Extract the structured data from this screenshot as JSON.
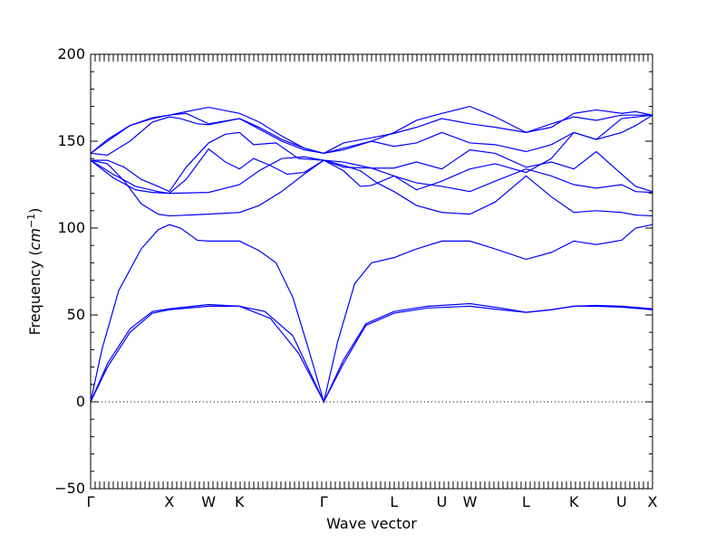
{
  "chart_data": {
    "type": "line",
    "xlabel": "Wave vector",
    "ylabel_prefix": "Frequency (",
    "ylabel_unit": "cm",
    "ylabel_exp": "−1",
    "ylabel_suffix": ")",
    "ylim": [
      -50,
      200
    ],
    "yticks": [
      -50,
      0,
      50,
      100,
      150,
      200
    ],
    "ytick_labels": [
      "−50",
      "0",
      "50",
      "100",
      "150",
      "200"
    ],
    "xlim": [
      0,
      1
    ],
    "high_symmetry_points": [
      {
        "label": "Γ",
        "x": 0.0
      },
      {
        "label": "X",
        "x": 0.14
      },
      {
        "label": "W",
        "x": 0.21
      },
      {
        "label": "K",
        "x": 0.265
      },
      {
        "label": "Γ",
        "x": 0.415
      },
      {
        "label": "L",
        "x": 0.54
      },
      {
        "label": "U",
        "x": 0.625
      },
      {
        "label": "W",
        "x": 0.675
      },
      {
        "label": "L",
        "x": 0.775
      },
      {
        "label": "K",
        "x": 0.86
      },
      {
        "label": "U",
        "x": 0.945
      },
      {
        "label": "X",
        "x": 1.0
      }
    ],
    "series": [
      {
        "values": [
          [
            0,
            0
          ],
          [
            0.03,
            20
          ],
          [
            0.07,
            40
          ],
          [
            0.11,
            51
          ],
          [
            0.14,
            53
          ],
          [
            0.21,
            55
          ],
          [
            0.265,
            55
          ],
          [
            0.32,
            48
          ],
          [
            0.37,
            28
          ],
          [
            0.415,
            0
          ],
          [
            0.45,
            22
          ],
          [
            0.49,
            44
          ],
          [
            0.54,
            51
          ],
          [
            0.6,
            54
          ],
          [
            0.675,
            55
          ],
          [
            0.73,
            53
          ],
          [
            0.775,
            51.5
          ],
          [
            0.82,
            53
          ],
          [
            0.86,
            55
          ],
          [
            0.9,
            55
          ],
          [
            0.945,
            54.5
          ],
          [
            1.0,
            53
          ]
        ]
      },
      {
        "values": [
          [
            0,
            0
          ],
          [
            0.03,
            22
          ],
          [
            0.07,
            42
          ],
          [
            0.11,
            52
          ],
          [
            0.14,
            53.5
          ],
          [
            0.21,
            56
          ],
          [
            0.265,
            55
          ],
          [
            0.31,
            52
          ],
          [
            0.36,
            38
          ],
          [
            0.415,
            0
          ],
          [
            0.45,
            24
          ],
          [
            0.49,
            45
          ],
          [
            0.54,
            52
          ],
          [
            0.6,
            55
          ],
          [
            0.675,
            56.5
          ],
          [
            0.73,
            54
          ],
          [
            0.775,
            51.5
          ],
          [
            0.82,
            53
          ],
          [
            0.86,
            55
          ],
          [
            0.9,
            55.5
          ],
          [
            0.945,
            55
          ],
          [
            1.0,
            53.5
          ]
        ]
      },
      {
        "values": [
          [
            0,
            0
          ],
          [
            0.02,
            30
          ],
          [
            0.05,
            64
          ],
          [
            0.09,
            88
          ],
          [
            0.12,
            99
          ],
          [
            0.14,
            102
          ],
          [
            0.16,
            100
          ],
          [
            0.19,
            93
          ],
          [
            0.21,
            92.5
          ],
          [
            0.265,
            92.5
          ],
          [
            0.3,
            87
          ],
          [
            0.33,
            80
          ],
          [
            0.36,
            60
          ],
          [
            0.39,
            28
          ],
          [
            0.415,
            0
          ],
          [
            0.44,
            35
          ],
          [
            0.47,
            68
          ],
          [
            0.5,
            80
          ],
          [
            0.54,
            83
          ],
          [
            0.58,
            88
          ],
          [
            0.625,
            92.5
          ],
          [
            0.675,
            92.5
          ],
          [
            0.72,
            88
          ],
          [
            0.775,
            82
          ],
          [
            0.82,
            86
          ],
          [
            0.86,
            92.5
          ],
          [
            0.9,
            90.5
          ],
          [
            0.945,
            93
          ],
          [
            0.97,
            100
          ],
          [
            1.0,
            102
          ]
        ]
      },
      {
        "values": [
          [
            0,
            139
          ],
          [
            0.03,
            137
          ],
          [
            0.06,
            127
          ],
          [
            0.09,
            114
          ],
          [
            0.12,
            108
          ],
          [
            0.14,
            107
          ],
          [
            0.21,
            108
          ],
          [
            0.265,
            109
          ],
          [
            0.3,
            113
          ],
          [
            0.34,
            121
          ],
          [
            0.38,
            131
          ],
          [
            0.415,
            139
          ],
          [
            0.45,
            136
          ],
          [
            0.48,
            133
          ],
          [
            0.51,
            126
          ],
          [
            0.54,
            121
          ],
          [
            0.58,
            113
          ],
          [
            0.625,
            109
          ],
          [
            0.675,
            108
          ],
          [
            0.72,
            115
          ],
          [
            0.775,
            130
          ],
          [
            0.82,
            118
          ],
          [
            0.86,
            109
          ],
          [
            0.9,
            110
          ],
          [
            0.945,
            109
          ],
          [
            0.97,
            107.5
          ],
          [
            1.0,
            107
          ]
        ]
      },
      {
        "values": [
          [
            0,
            139
          ],
          [
            0.04,
            129
          ],
          [
            0.08,
            122
          ],
          [
            0.11,
            120.5
          ],
          [
            0.14,
            120
          ],
          [
            0.21,
            120.5
          ],
          [
            0.265,
            125
          ],
          [
            0.3,
            133
          ],
          [
            0.34,
            140
          ],
          [
            0.38,
            141
          ],
          [
            0.415,
            139
          ],
          [
            0.45,
            135
          ],
          [
            0.5,
            134.5
          ],
          [
            0.54,
            130
          ],
          [
            0.58,
            126
          ],
          [
            0.625,
            124
          ],
          [
            0.675,
            121
          ],
          [
            0.72,
            127
          ],
          [
            0.775,
            134
          ],
          [
            0.82,
            130
          ],
          [
            0.86,
            125
          ],
          [
            0.9,
            123
          ],
          [
            0.945,
            125
          ],
          [
            0.97,
            121
          ],
          [
            1.0,
            120.5
          ]
        ]
      },
      {
        "values": [
          [
            0,
            139
          ],
          [
            0.04,
            131
          ],
          [
            0.08,
            124
          ],
          [
            0.12,
            121
          ],
          [
            0.14,
            120
          ],
          [
            0.17,
            128
          ],
          [
            0.21,
            145.5
          ],
          [
            0.24,
            138
          ],
          [
            0.265,
            134
          ],
          [
            0.29,
            140
          ],
          [
            0.32,
            136
          ],
          [
            0.35,
            131
          ],
          [
            0.38,
            132
          ],
          [
            0.415,
            139
          ],
          [
            0.45,
            138
          ],
          [
            0.5,
            134.5
          ],
          [
            0.54,
            134.5
          ],
          [
            0.58,
            138
          ],
          [
            0.625,
            134
          ],
          [
            0.675,
            145
          ],
          [
            0.72,
            143
          ],
          [
            0.775,
            135
          ],
          [
            0.82,
            138
          ],
          [
            0.86,
            134
          ],
          [
            0.9,
            144
          ],
          [
            0.945,
            131
          ],
          [
            0.97,
            124
          ],
          [
            1.0,
            121
          ]
        ]
      },
      {
        "values": [
          [
            0,
            139
          ],
          [
            0.03,
            139
          ],
          [
            0.06,
            135
          ],
          [
            0.09,
            128
          ],
          [
            0.12,
            124
          ],
          [
            0.14,
            121
          ],
          [
            0.17,
            135
          ],
          [
            0.21,
            149
          ],
          [
            0.24,
            154
          ],
          [
            0.265,
            155
          ],
          [
            0.29,
            148
          ],
          [
            0.33,
            149
          ],
          [
            0.37,
            140
          ],
          [
            0.415,
            139
          ],
          [
            0.45,
            133
          ],
          [
            0.48,
            124
          ],
          [
            0.5,
            124.5
          ],
          [
            0.54,
            130
          ],
          [
            0.58,
            122
          ],
          [
            0.625,
            127
          ],
          [
            0.675,
            134
          ],
          [
            0.72,
            137
          ],
          [
            0.775,
            132
          ],
          [
            0.82,
            140
          ],
          [
            0.86,
            155
          ],
          [
            0.9,
            151
          ],
          [
            0.945,
            155
          ],
          [
            0.97,
            159
          ],
          [
            1.0,
            165
          ]
        ]
      },
      {
        "values": [
          [
            0,
            143
          ],
          [
            0.03,
            142
          ],
          [
            0.07,
            150
          ],
          [
            0.11,
            161
          ],
          [
            0.14,
            164
          ],
          [
            0.16,
            163
          ],
          [
            0.19,
            160
          ],
          [
            0.21,
            159.5
          ],
          [
            0.265,
            163
          ],
          [
            0.3,
            157
          ],
          [
            0.34,
            150
          ],
          [
            0.38,
            145
          ],
          [
            0.415,
            143
          ],
          [
            0.45,
            145
          ],
          [
            0.5,
            150
          ],
          [
            0.54,
            147
          ],
          [
            0.58,
            149
          ],
          [
            0.625,
            155
          ],
          [
            0.675,
            149
          ],
          [
            0.72,
            148
          ],
          [
            0.775,
            144
          ],
          [
            0.82,
            148
          ],
          [
            0.86,
            155
          ],
          [
            0.9,
            151
          ],
          [
            0.945,
            163
          ],
          [
            1.0,
            165
          ]
        ]
      },
      {
        "values": [
          [
            0,
            143
          ],
          [
            0.03,
            150
          ],
          [
            0.07,
            159
          ],
          [
            0.11,
            163
          ],
          [
            0.14,
            165
          ],
          [
            0.17,
            167
          ],
          [
            0.21,
            169.5
          ],
          [
            0.265,
            166
          ],
          [
            0.3,
            161
          ],
          [
            0.34,
            153
          ],
          [
            0.38,
            146
          ],
          [
            0.415,
            143
          ],
          [
            0.45,
            149
          ],
          [
            0.5,
            152
          ],
          [
            0.54,
            154.5
          ],
          [
            0.58,
            158
          ],
          [
            0.625,
            163
          ],
          [
            0.675,
            160
          ],
          [
            0.72,
            158
          ],
          [
            0.775,
            155
          ],
          [
            0.82,
            160
          ],
          [
            0.86,
            164
          ],
          [
            0.9,
            162
          ],
          [
            0.945,
            165
          ],
          [
            1.0,
            165
          ]
        ]
      },
      {
        "values": [
          [
            0,
            143
          ],
          [
            0.03,
            151
          ],
          [
            0.07,
            159
          ],
          [
            0.11,
            163.5
          ],
          [
            0.14,
            165
          ],
          [
            0.17,
            166
          ],
          [
            0.21,
            160
          ],
          [
            0.265,
            163
          ],
          [
            0.3,
            158
          ],
          [
            0.34,
            151
          ],
          [
            0.38,
            146
          ],
          [
            0.415,
            143
          ],
          [
            0.45,
            146
          ],
          [
            0.5,
            150
          ],
          [
            0.54,
            155
          ],
          [
            0.58,
            162
          ],
          [
            0.625,
            166
          ],
          [
            0.675,
            170
          ],
          [
            0.72,
            164
          ],
          [
            0.775,
            155
          ],
          [
            0.82,
            158
          ],
          [
            0.86,
            166
          ],
          [
            0.9,
            168
          ],
          [
            0.945,
            166
          ],
          [
            0.97,
            167
          ],
          [
            1.0,
            165
          ]
        ]
      }
    ]
  }
}
